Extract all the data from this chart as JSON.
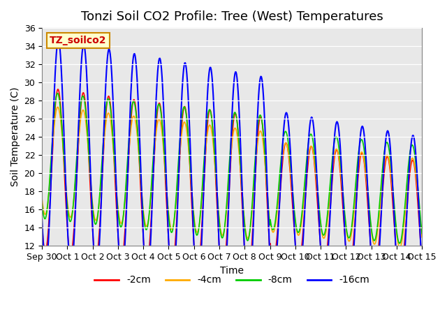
{
  "title": "Tonzi Soil CO2 Profile: Tree (West) Temperatures",
  "xlabel": "Time",
  "ylabel": "Soil Temperature (C)",
  "ylim": [
    12,
    36
  ],
  "tick_labels": [
    "Sep 30",
    "Oct 1",
    "Oct 2",
    "Oct 3",
    "Oct 4",
    "Oct 5",
    "Oct 6",
    "Oct 7",
    "Oct 8",
    "Oct 9",
    "Oct 10",
    "Oct 11",
    "Oct 12",
    "Oct 13",
    "Oct 14",
    "Oct 15"
  ],
  "legend_labels": [
    "-2cm",
    "-4cm",
    "-8cm",
    "-16cm"
  ],
  "line_colors": [
    "#ff0000",
    "#ffaa00",
    "#00cc00",
    "#0000ff"
  ],
  "bg_color": "#e8e8e8",
  "fig_bg": "#ffffff",
  "annotation_text": "TZ_soilco2",
  "annotation_color": "#cc0000",
  "annotation_bg": "#ffffcc",
  "annotation_border": "#cc8800",
  "title_fontsize": 13,
  "label_fontsize": 10,
  "tick_fontsize": 9,
  "legend_fontsize": 10,
  "daily_cycles": 15
}
